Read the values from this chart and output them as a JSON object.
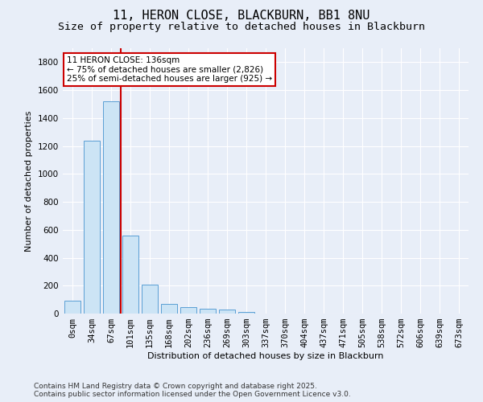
{
  "title1": "11, HERON CLOSE, BLACKBURN, BB1 8NU",
  "title2": "Size of property relative to detached houses in Blackburn",
  "xlabel": "Distribution of detached houses by size in Blackburn",
  "ylabel": "Number of detached properties",
  "categories": [
    "0sqm",
    "34sqm",
    "67sqm",
    "101sqm",
    "135sqm",
    "168sqm",
    "202sqm",
    "236sqm",
    "269sqm",
    "303sqm",
    "337sqm",
    "370sqm",
    "404sqm",
    "437sqm",
    "471sqm",
    "505sqm",
    "538sqm",
    "572sqm",
    "606sqm",
    "639sqm",
    "673sqm"
  ],
  "values": [
    90,
    1240,
    1520,
    560,
    210,
    70,
    47,
    37,
    27,
    10,
    0,
    0,
    0,
    0,
    0,
    0,
    0,
    0,
    0,
    0,
    0
  ],
  "bar_color": "#cce4f5",
  "bar_edge_color": "#5b9fd4",
  "vline_x_index": 2,
  "vline_color": "#cc0000",
  "annotation_text": "11 HERON CLOSE: 136sqm\n← 75% of detached houses are smaller (2,826)\n25% of semi-detached houses are larger (925) →",
  "annotation_box_color": "white",
  "annotation_box_edge_color": "#cc0000",
  "ylim": [
    0,
    1900
  ],
  "yticks": [
    0,
    200,
    400,
    600,
    800,
    1000,
    1200,
    1400,
    1600,
    1800
  ],
  "background_color": "#e8eef8",
  "grid_color": "white",
  "footer1": "Contains HM Land Registry data © Crown copyright and database right 2025.",
  "footer2": "Contains public sector information licensed under the Open Government Licence v3.0.",
  "title1_fontsize": 11,
  "title2_fontsize": 9.5,
  "xlabel_fontsize": 8,
  "ylabel_fontsize": 8,
  "tick_fontsize": 7.5,
  "annotation_fontsize": 7.5,
  "footer_fontsize": 6.5
}
